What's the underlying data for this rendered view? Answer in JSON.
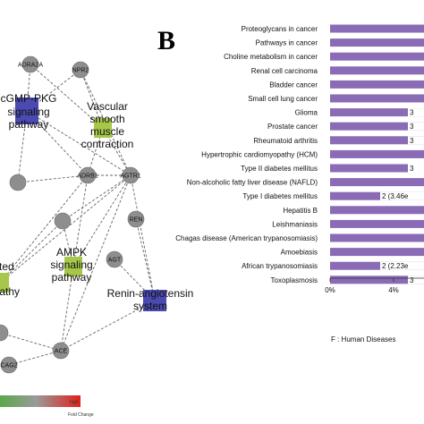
{
  "panel_letter": "B",
  "network": {
    "genes": [
      {
        "id": "adra2a",
        "label": "ADRA2A"
      },
      {
        "id": "npr2",
        "label": "NPR2"
      },
      {
        "id": "adrb1",
        "label": "ADRB1"
      },
      {
        "id": "agtr1",
        "label": "AGTR1"
      },
      {
        "id": "ren",
        "label": "REN"
      },
      {
        "id": "agt",
        "label": "AGT"
      },
      {
        "id": "ace",
        "label": "ACE"
      },
      {
        "id": "cag2",
        "label": "CAG2"
      },
      {
        "id": "n1",
        "label": ""
      },
      {
        "id": "n2",
        "label": ""
      },
      {
        "id": "n3",
        "label": ""
      }
    ],
    "pathways": [
      {
        "id": "cgmp",
        "lines": [
          "cGMP-PKG",
          "signaling",
          "pathway"
        ],
        "color": "#4a4ab0"
      },
      {
        "id": "vsm",
        "lines": [
          "Vascular",
          "smooth",
          "muscle",
          "contraction"
        ],
        "color": "#a6c74a"
      },
      {
        "id": "ampk",
        "lines": [
          "AMPK",
          "signaling",
          "pathway"
        ],
        "color": "#a6c74a"
      },
      {
        "id": "renin",
        "lines": [
          "Renin-angiotensin",
          "system"
        ],
        "color": "#4a4ab0"
      },
      {
        "id": "ated",
        "lines": [
          "ated",
          "opathy"
        ],
        "color": "#a6c74a"
      }
    ]
  },
  "legend": {
    "high_label": "high",
    "caption": "Fold Change"
  },
  "chart_data": {
    "type": "bar",
    "orientation": "horizontal",
    "categories": [
      "Proteoglycans in cancer",
      "Pathways in cancer",
      "Choline metabolism in cancer",
      "Renal cell carcinoma",
      "Bladder cancer",
      "Small cell lung cancer",
      "Glioma",
      "Prostate cancer",
      "Rheumatoid arthritis",
      "Hypertrophic cardiomyopathy (HCM)",
      "Type II diabetes mellitus",
      "Non-alcoholic fatty liver disease (NAFLD)",
      "Type I diabetes mellitus",
      "Hepatitis B",
      "Leishmaniasis",
      "Chagas disease (American trypanosomiasis)",
      "Amoebiasis",
      "African trypanosomiasis",
      "Toxoplasmosis"
    ],
    "value_labels": [
      "",
      "",
      "",
      "",
      "",
      "",
      "3",
      "3",
      "3",
      "",
      "3",
      "",
      "2 (3.46e",
      "",
      "",
      "",
      "",
      "2 (2.23e",
      "3"
    ],
    "x_ticks": [
      "0%",
      "4%"
    ],
    "xlim": [
      0,
      4
    ],
    "bar_color": "#8a6bb5",
    "category_title": "F : Human Diseases"
  }
}
